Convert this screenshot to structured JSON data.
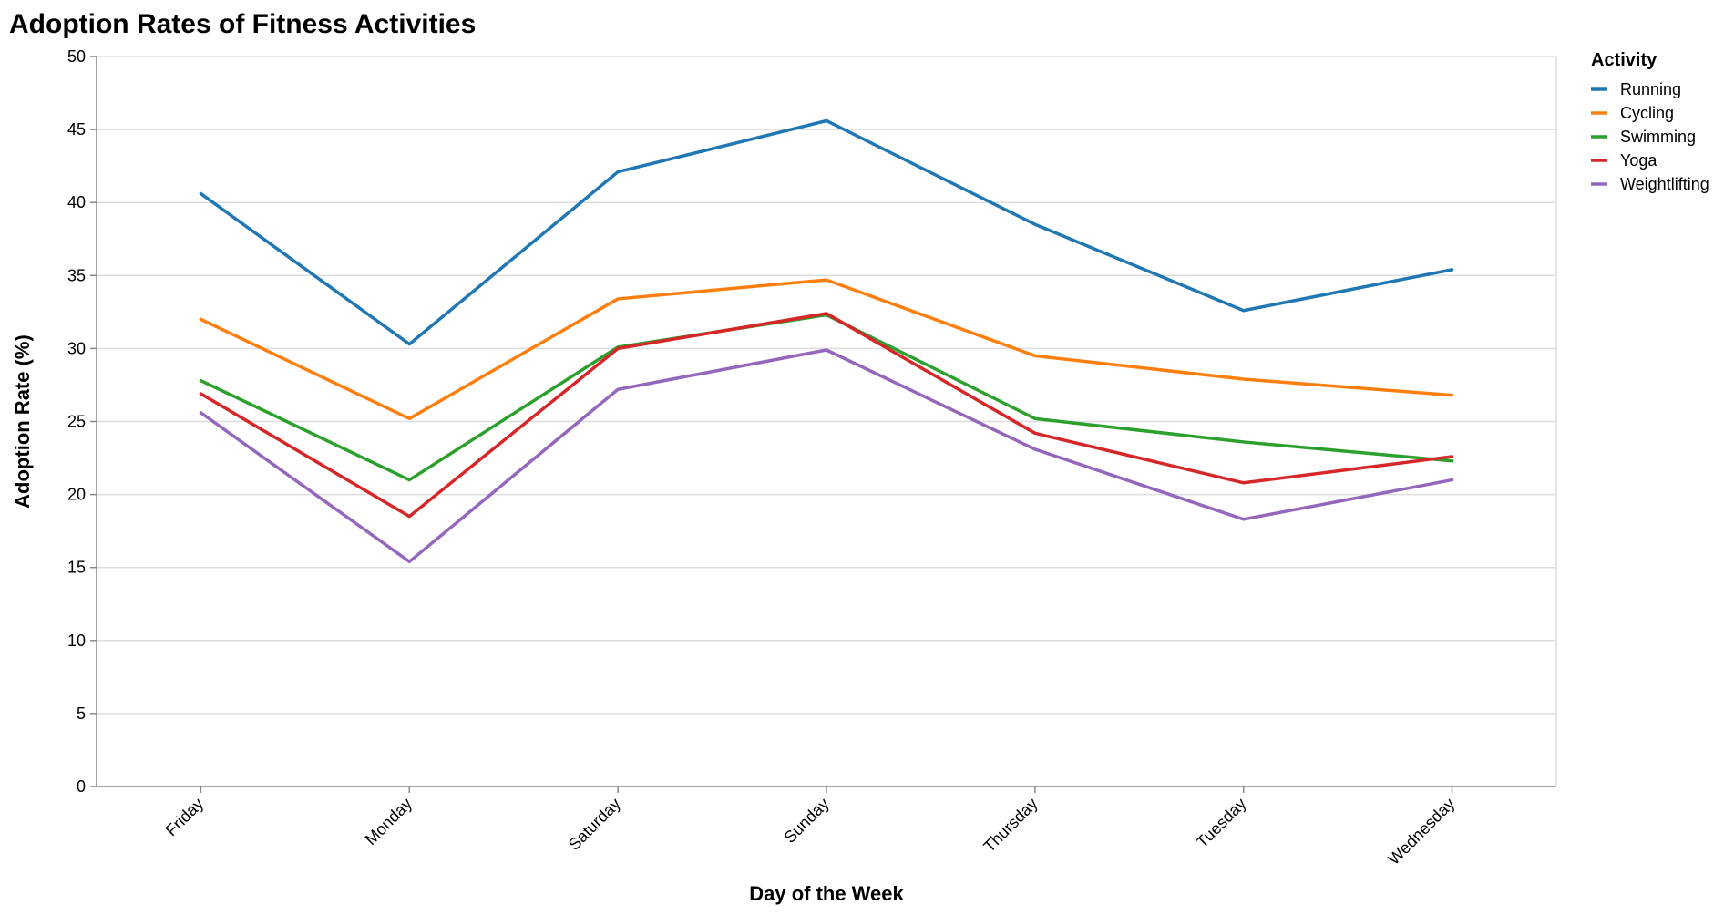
{
  "chart_data": {
    "type": "line",
    "title": "Adoption Rates of Fitness Activities",
    "xlabel": "Day of the Week",
    "ylabel": "Adoption Rate (%)",
    "ylim": [
      0,
      50
    ],
    "yticks": [
      0,
      5,
      10,
      15,
      20,
      25,
      30,
      35,
      40,
      45,
      50
    ],
    "categories": [
      "Friday",
      "Monday",
      "Saturday",
      "Sunday",
      "Thursday",
      "Tuesday",
      "Wednesday"
    ],
    "grid": true,
    "legend": {
      "title": "Activity",
      "placement": "right"
    },
    "series": [
      {
        "name": "Running",
        "color": "#1f77b4",
        "values": [
          40.6,
          30.3,
          42.1,
          45.6,
          38.5,
          32.6,
          35.4
        ]
      },
      {
        "name": "Cycling",
        "color": "#ff7f0e",
        "values": [
          32.0,
          25.2,
          33.4,
          34.7,
          29.5,
          27.9,
          26.8
        ]
      },
      {
        "name": "Swimming",
        "color": "#2ca02c",
        "values": [
          27.8,
          21.0,
          30.1,
          32.3,
          25.2,
          23.6,
          22.3
        ]
      },
      {
        "name": "Yoga",
        "color": "#d62728",
        "values": [
          26.9,
          18.5,
          30.0,
          32.4,
          24.2,
          20.8,
          22.6
        ]
      },
      {
        "name": "Weightlifting",
        "color": "#9467bd",
        "values": [
          25.6,
          15.4,
          27.2,
          29.9,
          23.1,
          18.3,
          21.0
        ]
      }
    ]
  }
}
